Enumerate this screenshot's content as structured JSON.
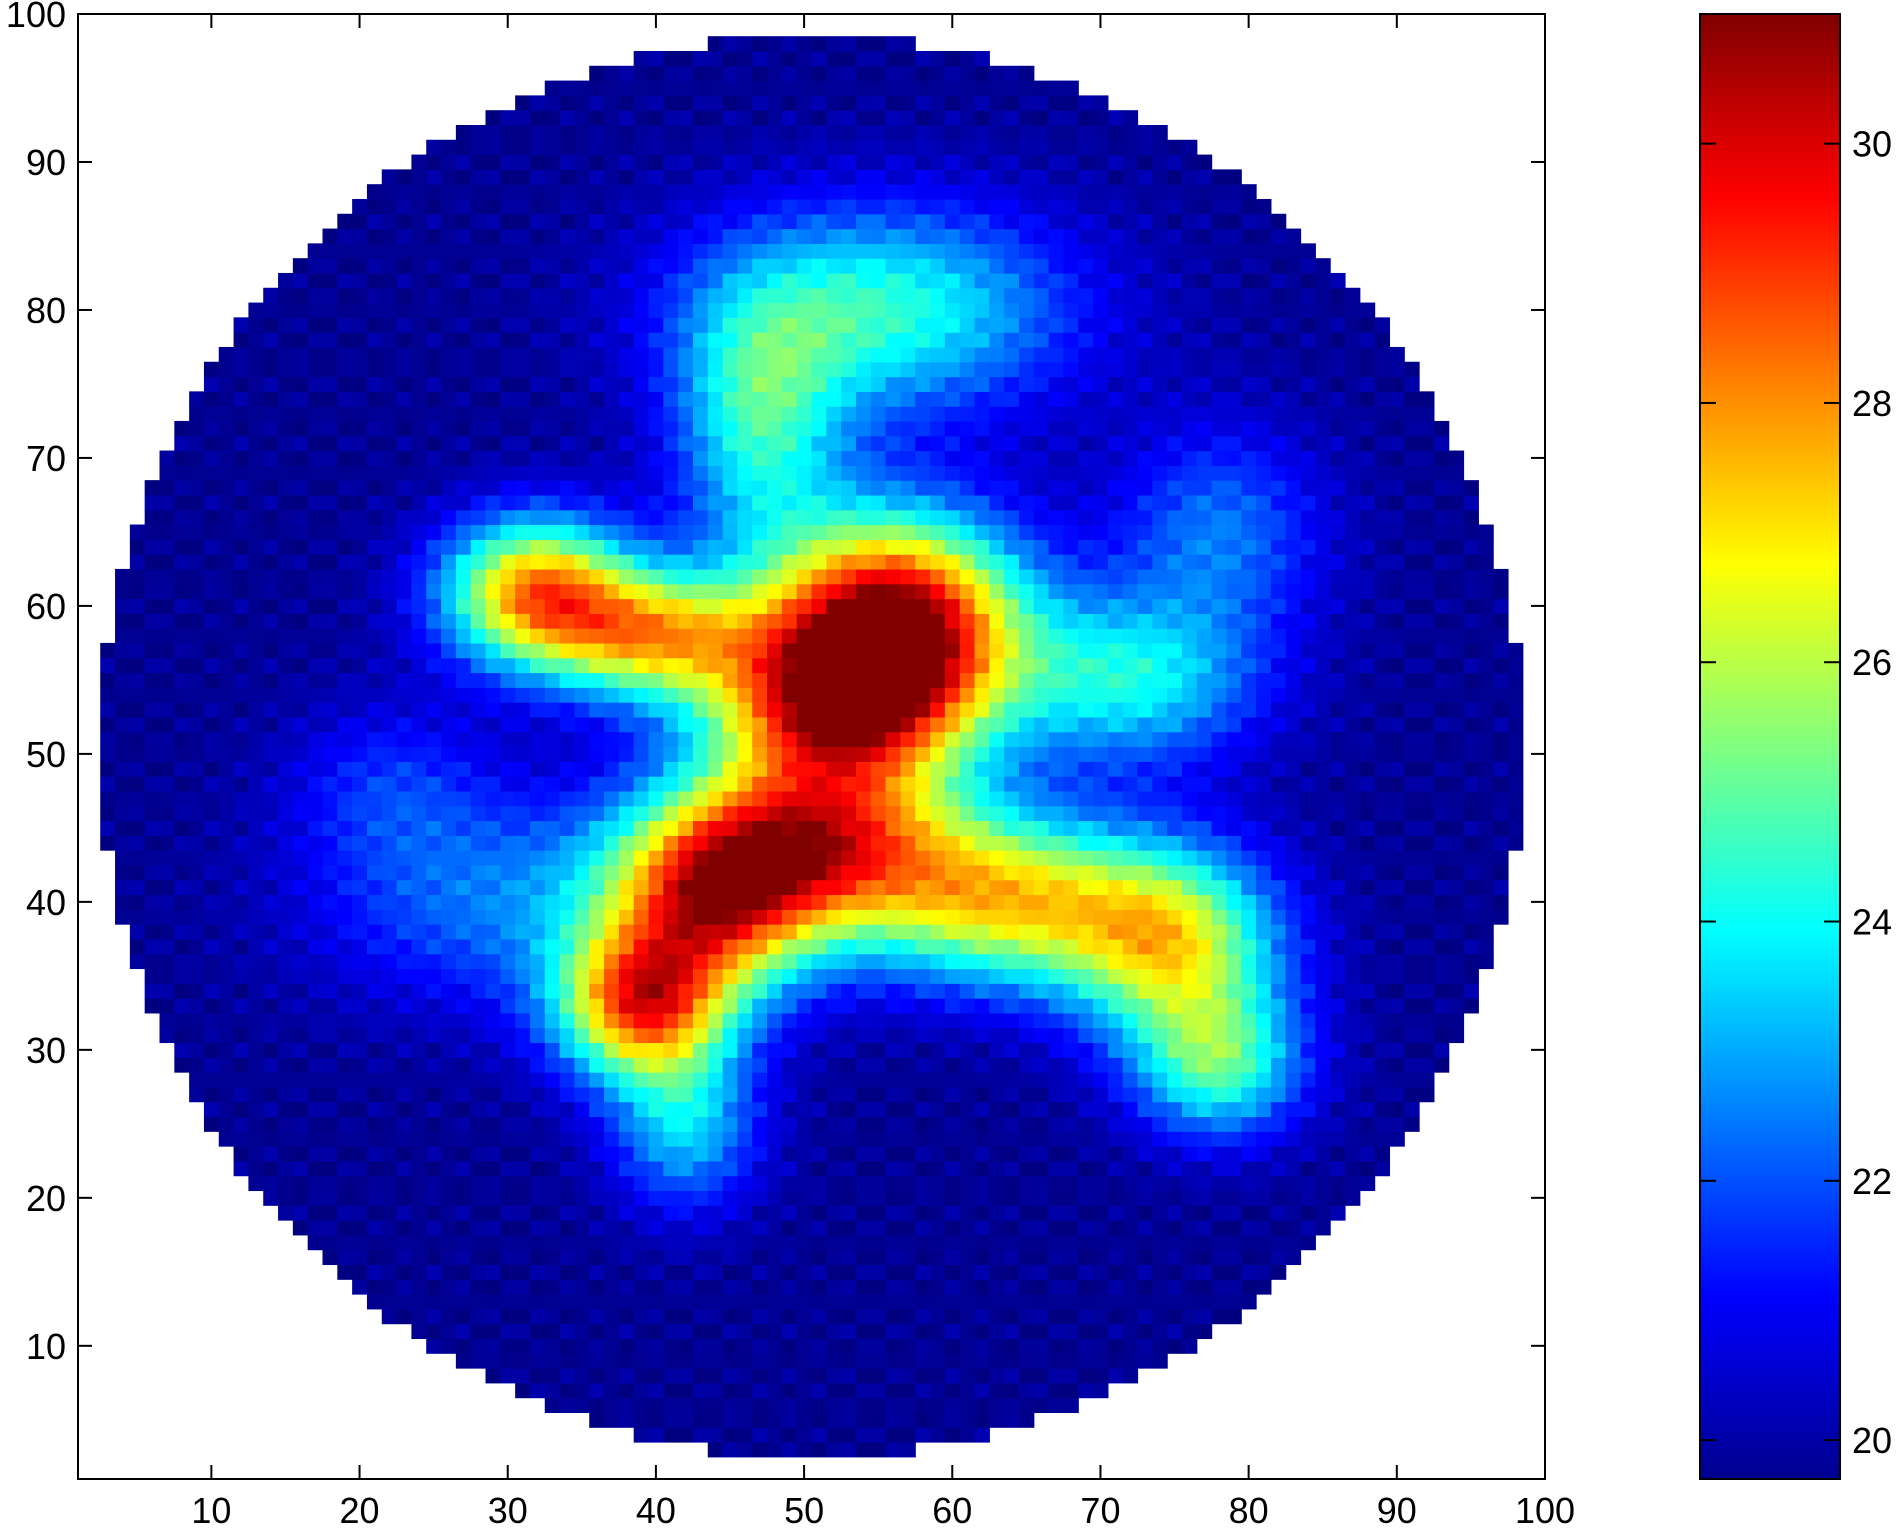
{
  "chart_data": {
    "type": "heatmap",
    "title": "",
    "xlabel": "",
    "ylabel": "",
    "xlim": [
      1,
      100
    ],
    "ylim": [
      1,
      100
    ],
    "x_ticks": [
      10,
      20,
      30,
      40,
      50,
      60,
      70,
      80,
      90,
      100
    ],
    "y_ticks": [
      10,
      20,
      30,
      40,
      50,
      60,
      70,
      80,
      90,
      100
    ],
    "grid": false,
    "domain": "circular disk centered near (50.5, 50.5), radius ~48",
    "colormap": "jet",
    "colorbar": {
      "range": [
        19.7,
        31.0
      ],
      "ticks": [
        20,
        22,
        24,
        26,
        28,
        30
      ],
      "placement": "right"
    },
    "background_value": 19.9,
    "features": [
      {
        "x": 56,
        "y": 59,
        "sx": 6.0,
        "sy": 5.0,
        "amp": 11.0
      },
      {
        "x": 52,
        "y": 53,
        "sx": 6.0,
        "sy": 4.0,
        "amp": 8.0
      },
      {
        "x": 51,
        "y": 44,
        "sx": 7.0,
        "sy": 4.0,
        "amp": 7.8
      },
      {
        "x": 44,
        "y": 40,
        "sx": 5.0,
        "sy": 4.5,
        "amp": 7.5
      },
      {
        "x": 39,
        "y": 33,
        "sx": 4.0,
        "sy": 3.5,
        "amp": 8.0
      },
      {
        "x": 32,
        "y": 61,
        "sx": 4.5,
        "sy": 3.5,
        "amp": 8.0
      },
      {
        "x": 40,
        "y": 58,
        "sx": 5.0,
        "sy": 3.0,
        "amp": 6.5
      },
      {
        "x": 64,
        "y": 40,
        "sx": 7.0,
        "sy": 4.0,
        "amp": 6.5
      },
      {
        "x": 75,
        "y": 37,
        "sx": 5.0,
        "sy": 4.5,
        "amp": 6.0
      },
      {
        "x": 78,
        "y": 29,
        "sx": 4.0,
        "sy": 3.5,
        "amp": 4.5
      },
      {
        "x": 55,
        "y": 80,
        "sx": 9.0,
        "sy": 5.0,
        "amp": 4.5
      },
      {
        "x": 47,
        "y": 72,
        "sx": 4.0,
        "sy": 6.0,
        "amp": 4.0
      },
      {
        "x": 72,
        "y": 55,
        "sx": 6.0,
        "sy": 4.0,
        "amp": 4.0
      },
      {
        "x": 78,
        "y": 65,
        "sx": 5.0,
        "sy": 5.0,
        "amp": 2.5
      },
      {
        "x": 42,
        "y": 25,
        "sx": 3.5,
        "sy": 4.0,
        "amp": 3.5
      },
      {
        "x": 30,
        "y": 40,
        "sx": 9.0,
        "sy": 5.0,
        "amp": 2.5
      },
      {
        "x": 22,
        "y": 48,
        "sx": 5.0,
        "sy": 4.0,
        "amp": 1.5
      }
    ]
  }
}
